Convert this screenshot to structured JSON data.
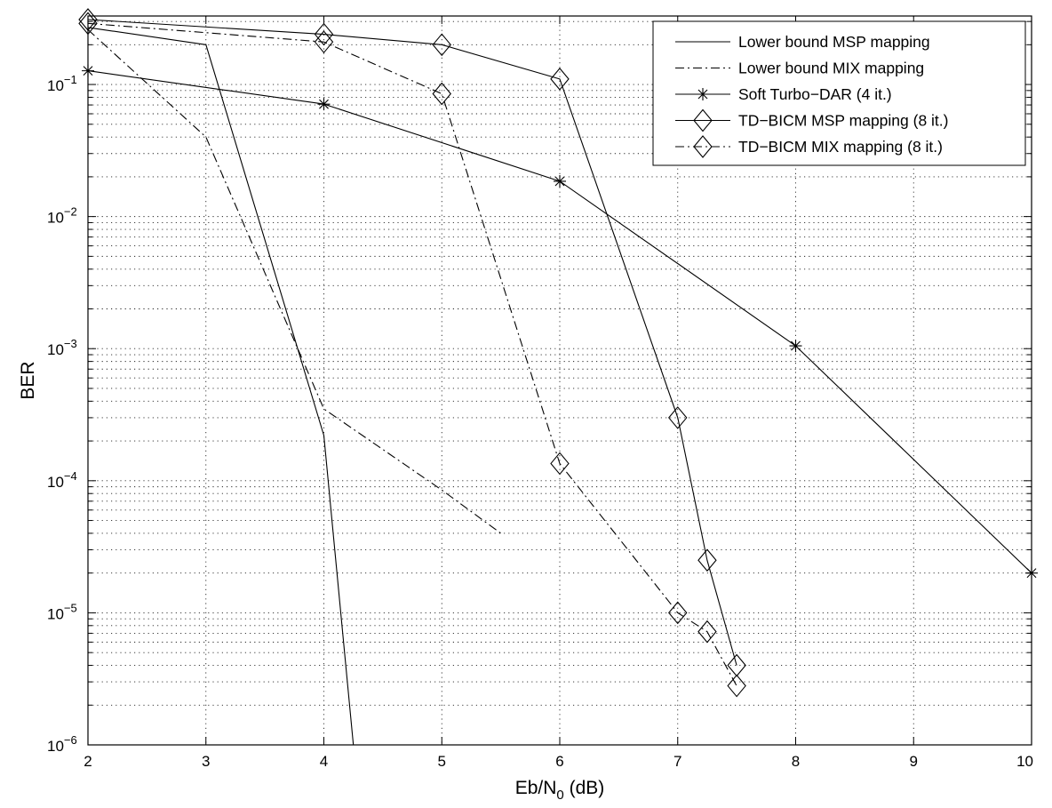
{
  "chart_data": {
    "type": "line",
    "title": "",
    "xlabel": "Eb/N",
    "xlabel_sub": "0",
    "xlabel_suffix": " (dB)",
    "ylabel": "BER",
    "xlim": [
      2,
      10
    ],
    "ylim": [
      1e-06,
      0.33
    ],
    "yscale": "log",
    "grid": true,
    "legend_position": "top-right",
    "x_ticks": [
      "2",
      "3",
      "4",
      "5",
      "6",
      "7",
      "8",
      "9",
      "10"
    ],
    "y_ticks": [
      {
        "base": "10",
        "exp": "−1"
      },
      {
        "base": "10",
        "exp": "−2"
      },
      {
        "base": "10",
        "exp": "−3"
      },
      {
        "base": "10",
        "exp": "−4"
      },
      {
        "base": "10",
        "exp": "−5"
      },
      {
        "base": "10",
        "exp": "−6"
      }
    ],
    "series": [
      {
        "name": "Lower bound MSP mapping",
        "line": "solid",
        "marker": "none",
        "points": [
          [
            2,
            0.27
          ],
          [
            3,
            0.2
          ],
          [
            4,
            0.00022
          ],
          [
            4.25,
            1e-06
          ]
        ]
      },
      {
        "name": "Lower bound MIX mapping",
        "line": "dashdot",
        "marker": "none",
        "points": [
          [
            2,
            0.26
          ],
          [
            3,
            0.04
          ],
          [
            4,
            0.00035
          ],
          [
            5,
            8.5e-05
          ],
          [
            5.5,
            4e-05
          ]
        ]
      },
      {
        "name": "Soft Turbo−DAR (4 it.)",
        "line": "solid",
        "marker": "star",
        "points": [
          [
            2,
            0.127
          ],
          [
            4,
            0.071
          ],
          [
            6,
            0.0185
          ],
          [
            8,
            0.00105
          ],
          [
            10,
            2e-05
          ]
        ]
      },
      {
        "name": "TD−BICM MSP mapping (8 it.)",
        "line": "solid",
        "marker": "diamond",
        "points": [
          [
            2,
            0.31
          ],
          [
            4,
            0.24
          ],
          [
            5,
            0.2
          ],
          [
            6,
            0.11
          ],
          [
            7,
            0.0003
          ],
          [
            7.25,
            2.5e-05
          ],
          [
            7.5,
            4e-06
          ]
        ]
      },
      {
        "name": "TD−BICM MIX mapping (8 it.)",
        "line": "dashdot",
        "marker": "diamond",
        "points": [
          [
            2,
            0.29
          ],
          [
            4,
            0.21
          ],
          [
            5,
            0.085
          ],
          [
            6,
            0.000135
          ],
          [
            7,
            1e-05
          ],
          [
            7.25,
            7.2e-06
          ],
          [
            7.5,
            2.8e-06
          ]
        ]
      }
    ]
  }
}
